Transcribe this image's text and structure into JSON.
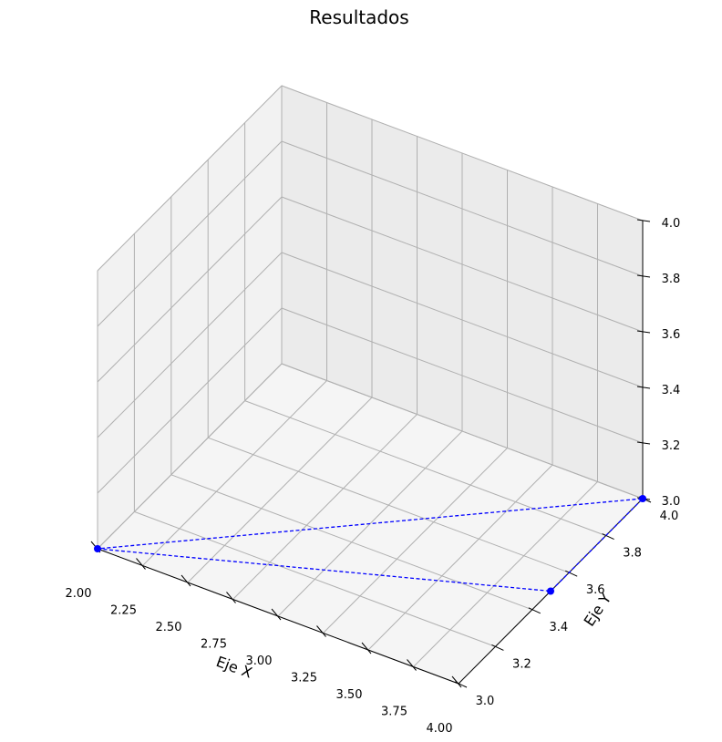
{
  "chart_data": {
    "type": "line3d",
    "title": "Resultados",
    "xlabel": "Eje X",
    "ylabel": "Eje Y",
    "zlabel": "",
    "xlim": [
      2.0,
      4.0
    ],
    "ylim": [
      3.0,
      4.0
    ],
    "zlim": [
      3.0,
      4.0
    ],
    "x_ticks": [
      "2.00",
      "2.25",
      "2.50",
      "2.75",
      "3.00",
      "3.25",
      "3.50",
      "3.75",
      "4.00"
    ],
    "y_ticks": [
      "3.0",
      "3.2",
      "3.4",
      "3.6",
      "3.8",
      "4.0"
    ],
    "z_ticks": [
      "3.0",
      "3.2",
      "3.4",
      "3.6",
      "3.8",
      "4.0"
    ],
    "grid": true,
    "series": [
      {
        "line_style": "dashed",
        "marker": "circle",
        "color": "#0000ff",
        "points": [
          {
            "x": 2.0,
            "y": 3.0,
            "z": 3.0
          },
          {
            "x": 4.0,
            "y": 3.5,
            "z": 3.0
          },
          {
            "x": 4.0,
            "y": 4.0,
            "z": 3.0
          },
          {
            "x": 2.0,
            "y": 3.0,
            "z": 3.0
          }
        ]
      }
    ],
    "colors": {
      "pane_left": "#f2f2f2",
      "pane_back": "#ebebeb",
      "pane_floor": "#f5f5f5"
    }
  }
}
